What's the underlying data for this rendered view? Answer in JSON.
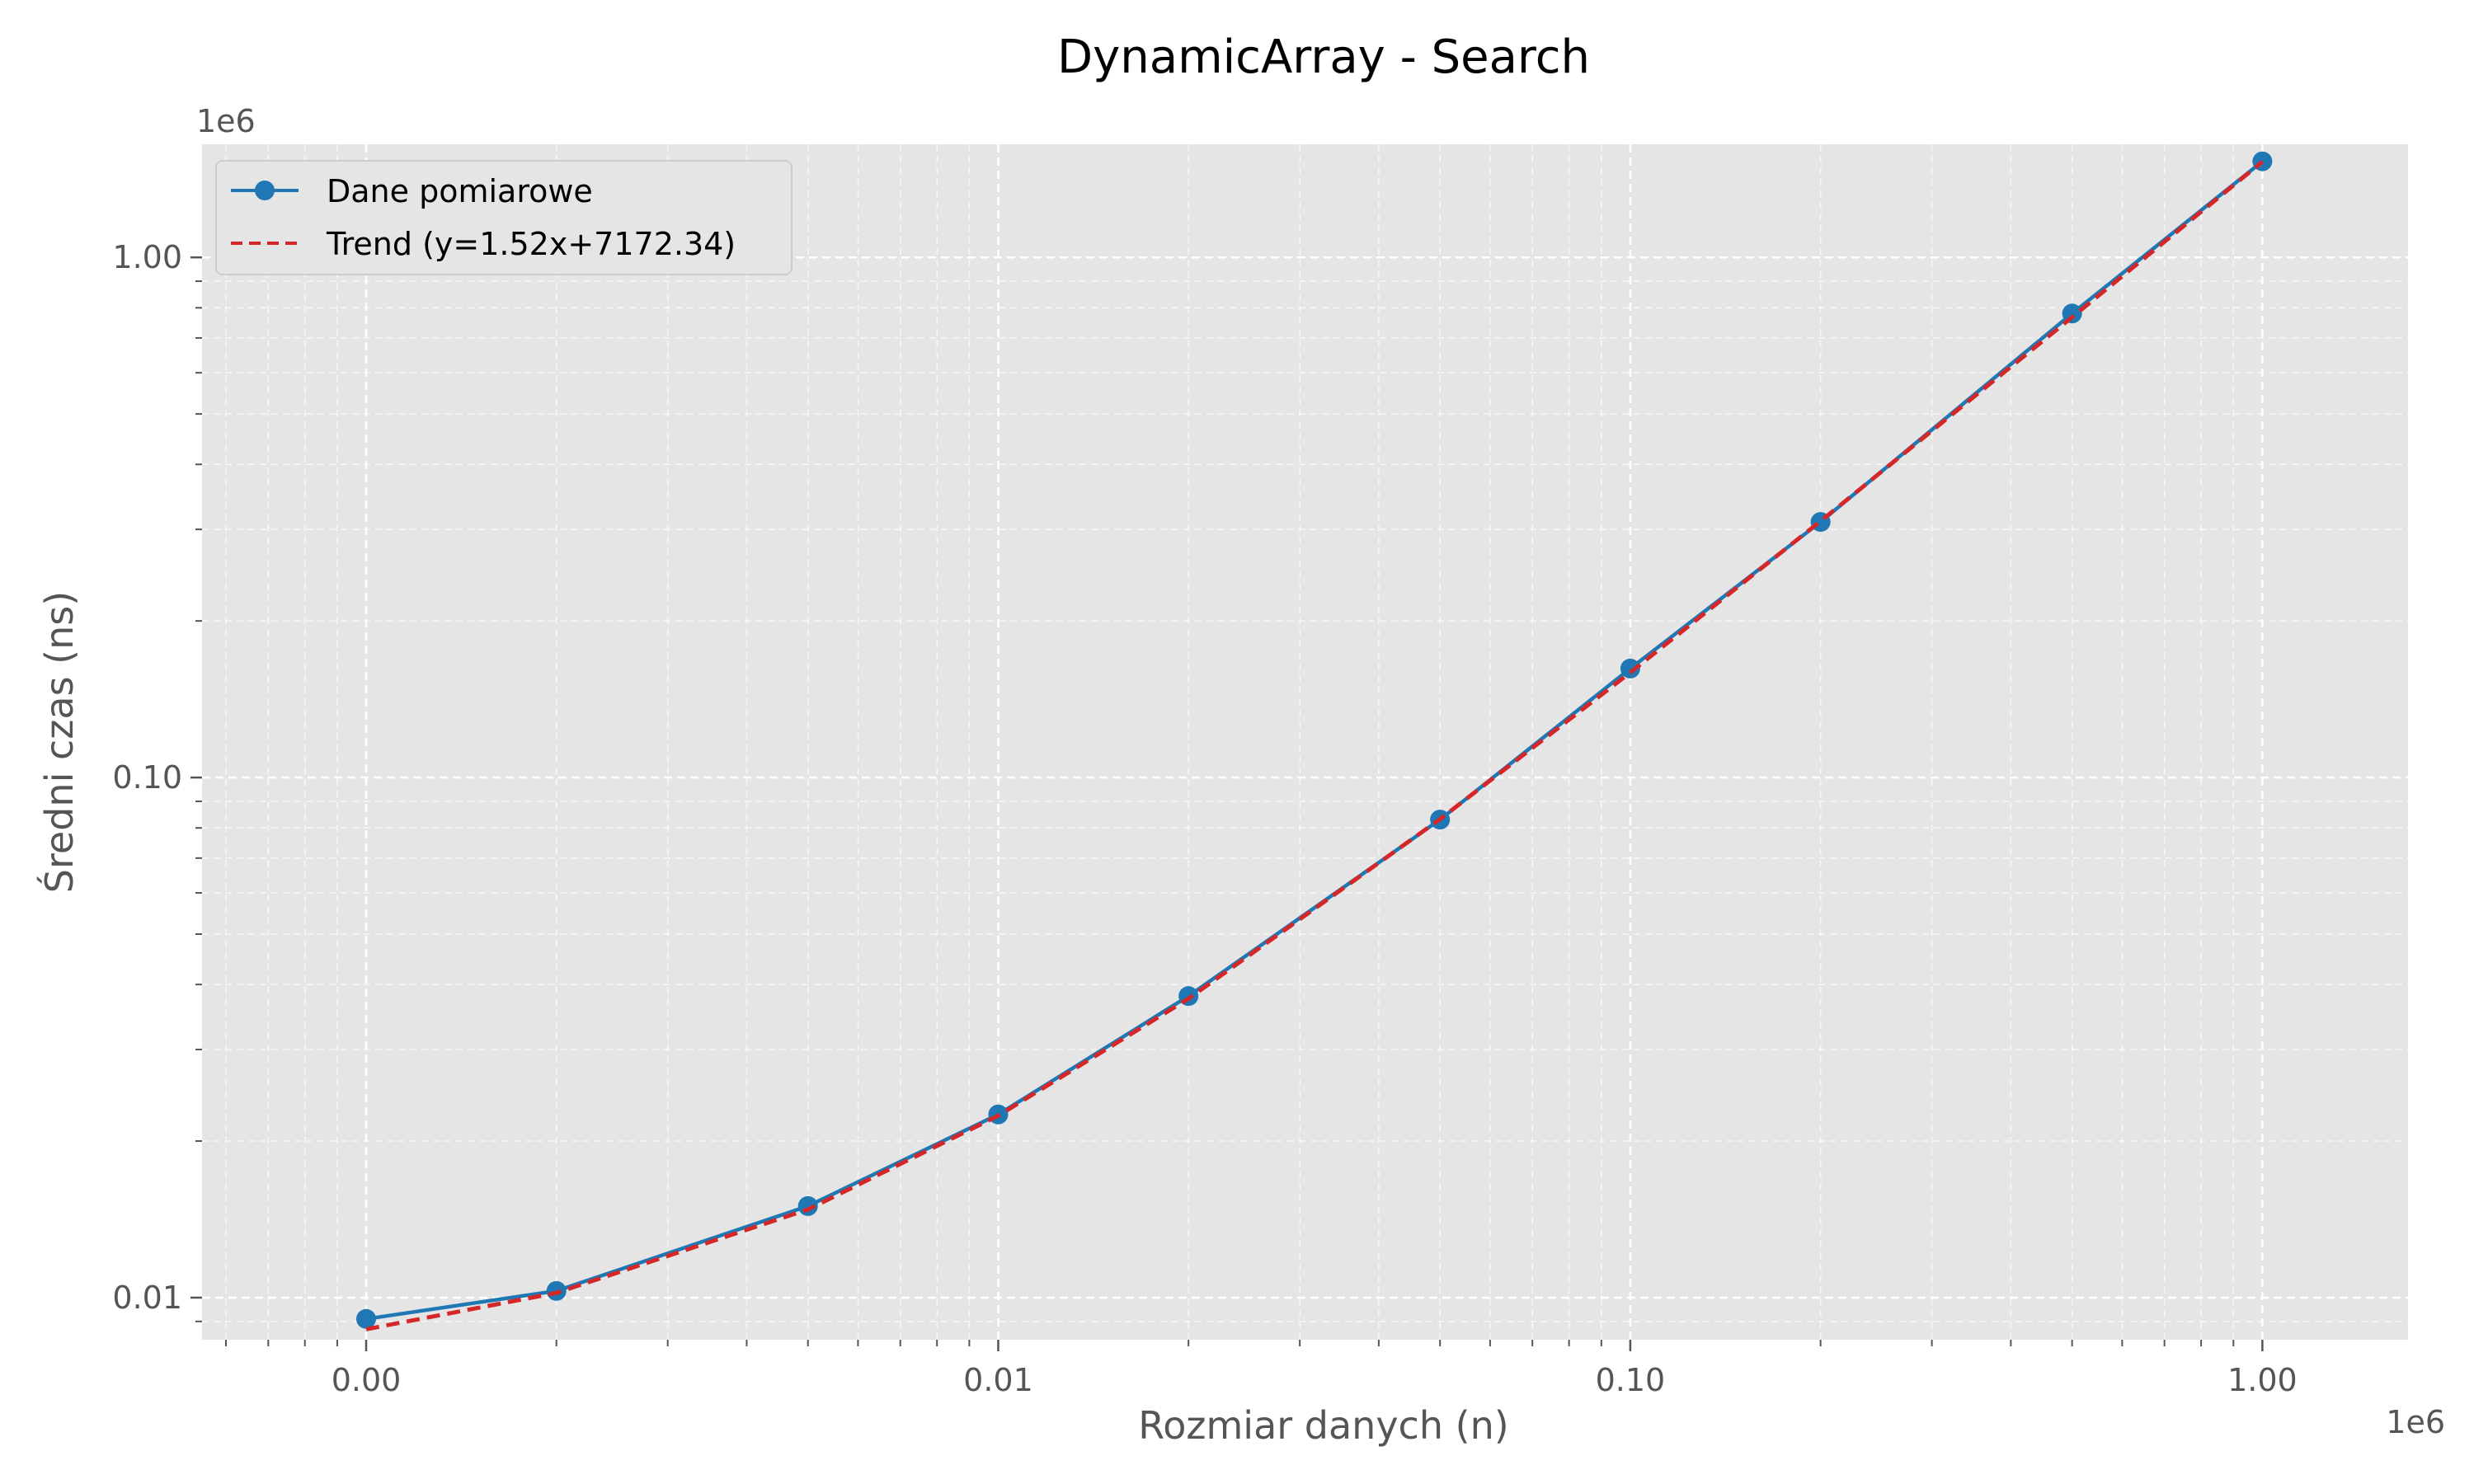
{
  "chart_data": {
    "type": "line",
    "title": "DynamicArray - Search",
    "xlabel": "Rozmiar danych (n)",
    "ylabel": "Średni czas (ns)",
    "x_scale": "log",
    "y_scale": "log",
    "x_offset_text": "1e6",
    "y_offset_text": "1e6",
    "xlim": [
      550,
      1700000
    ],
    "ylim": [
      8300,
      1650000
    ],
    "x_ticks": [
      {
        "value": 1000,
        "label": "0.00"
      },
      {
        "value": 10000,
        "label": "0.01"
      },
      {
        "value": 100000,
        "label": "0.10"
      },
      {
        "value": 1000000,
        "label": "1.00"
      }
    ],
    "y_ticks": [
      {
        "value": 10000,
        "label": "0.01"
      },
      {
        "value": 100000,
        "label": "0.10"
      },
      {
        "value": 1000000,
        "label": "1.00"
      }
    ],
    "grid": true,
    "legend_position": "top-left",
    "series": [
      {
        "name": "Dane pomiarowe",
        "style": "solid-marker",
        "color": "#1f77b4",
        "x": [
          1000,
          2000,
          5000,
          10000,
          20000,
          50000,
          100000,
          200000,
          500000,
          1000000
        ],
        "y": [
          9100,
          10300,
          15000,
          22500,
          38000,
          83000,
          162000,
          310000,
          780000,
          1530000
        ]
      },
      {
        "name": "Trend (y=1.52x+7172.34)",
        "style": "dashed",
        "color": "#d62728",
        "x": [
          1000,
          2000,
          5000,
          10000,
          20000,
          50000,
          100000,
          200000,
          500000,
          1000000
        ],
        "y": [
          8692.34,
          10212.34,
          14772.34,
          22372.34,
          37572.34,
          83172.34,
          159172.34,
          311172.34,
          767172.34,
          1527172.34
        ]
      }
    ]
  }
}
